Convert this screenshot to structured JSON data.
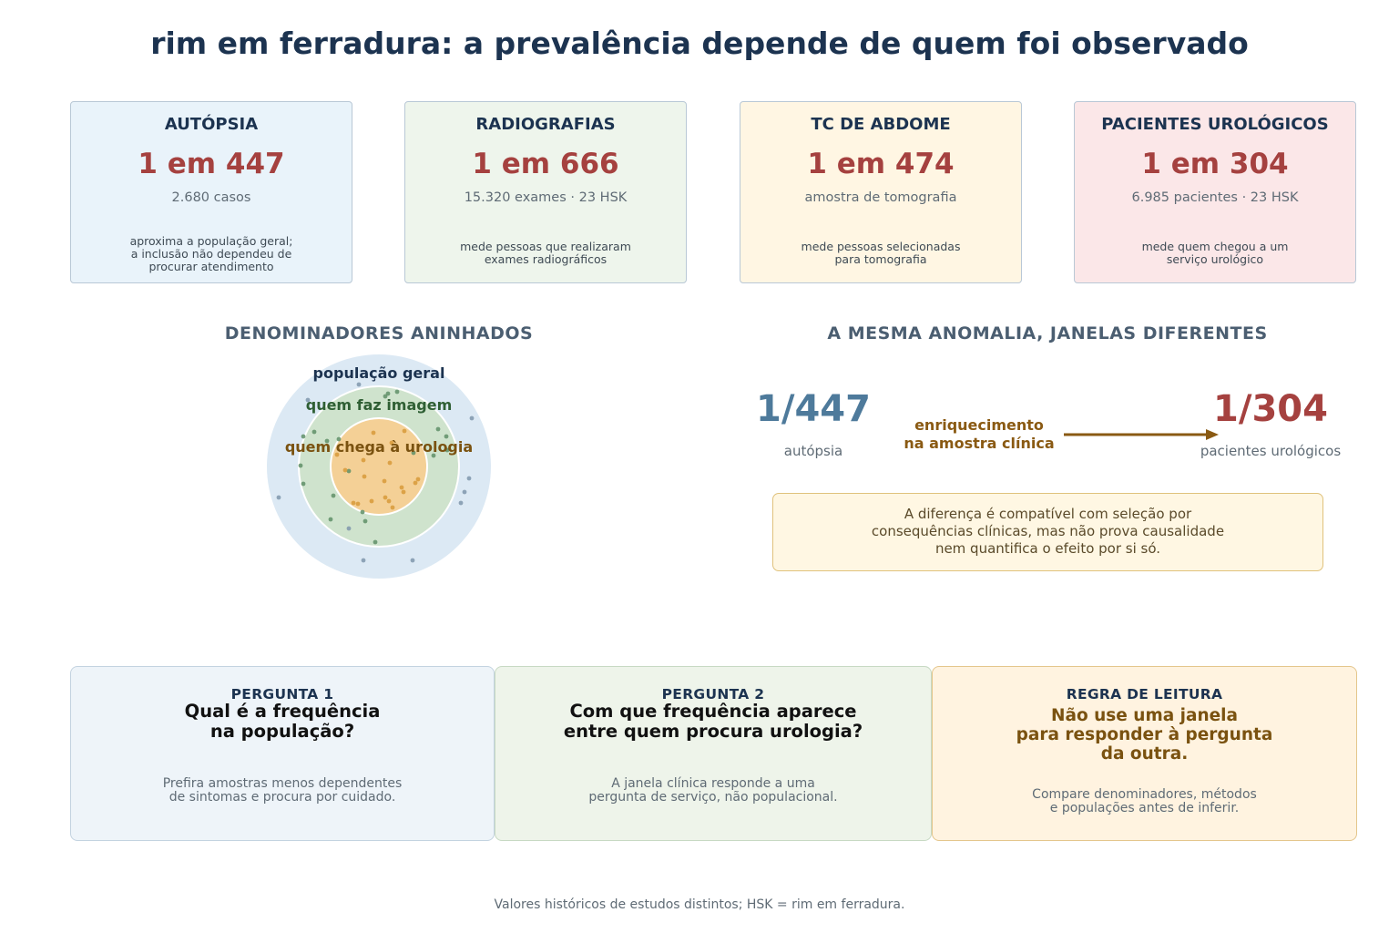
{
  "title": "rim em ferradura: a prevalência depende de quem foi observado",
  "cards": [
    {
      "heading": "AUTÓPSIA",
      "value": "1 em 447",
      "sub": "2.680 casos",
      "note": "aproxima a população geral;\na inclusão não dependeu de\nprocurar atendimento",
      "bg": "#e9f3fa"
    },
    {
      "heading": "RADIOGRAFIAS",
      "value": "1 em 666",
      "sub": "15.320 exames · 23 HSK",
      "note": "mede pessoas que realizaram\nexames radiográficos",
      "bg": "#eef5ec"
    },
    {
      "heading": "TC DE ABDOME",
      "value": "1 em 474",
      "sub": "amostra de tomografia",
      "note": "mede pessoas selecionadas\npara tomografia",
      "bg": "#fff6e3"
    },
    {
      "heading": "PACIENTES UROLÓGICOS",
      "value": "1 em 304",
      "sub": "6.985 pacientes · 23 HSK",
      "note": "mede quem chegou a um\nserviço urológico",
      "bg": "#fbe7e8"
    }
  ],
  "nested": {
    "heading": "DENOMINADORES ANINHADOS",
    "outer_label": "população geral",
    "middle_label": "quem faz imagem",
    "inner_label": "quem chega à urologia",
    "colors": {
      "outer": "#dce9f4",
      "middle": "#cfe3cd",
      "inner": "#f4d096"
    }
  },
  "windows": {
    "heading": "A MESMA ANOMALIA, JANELAS DIFERENTES",
    "left_value": "1/447",
    "left_caption": "autópsia",
    "left_color": "#4e7a9b",
    "arrow_label": "enriquecimento\nna amostra clínica",
    "right_value": "1/304",
    "right_caption": "pacientes urológicos",
    "right_color": "#a5413f",
    "note": "A diferença é compatível com seleção por\nconsequências clínicas, mas não prova causalidade\nnem quantifica o efeito por si só."
  },
  "questions": [
    {
      "kicker": "PERGUNTA 1",
      "title": "Qual é a frequência\nna população?",
      "desc": "Prefira amostras menos dependentes\nde sintomas e procura por cuidado.",
      "bg": "#eef4f9",
      "border": "#c3d3e0"
    },
    {
      "kicker": "PERGUNTA 2",
      "title": "Com que frequência aparece\nentre quem procura urologia?",
      "desc": "A janela clínica responde a uma\npergunta de serviço, não populacional.",
      "bg": "#eef4ea",
      "border": "#c7d9c3"
    },
    {
      "kicker": "REGRA DE LEITURA",
      "title": "Não use uma janela\npara responder à pergunta\nda outra.",
      "desc": "Compare denominadores, métodos\ne populações antes de inferir.",
      "bg": "#fff3e0",
      "border": "#e4c68c"
    }
  ],
  "footer": "Valores históricos de estudos distintos; HSK = rim em ferradura."
}
